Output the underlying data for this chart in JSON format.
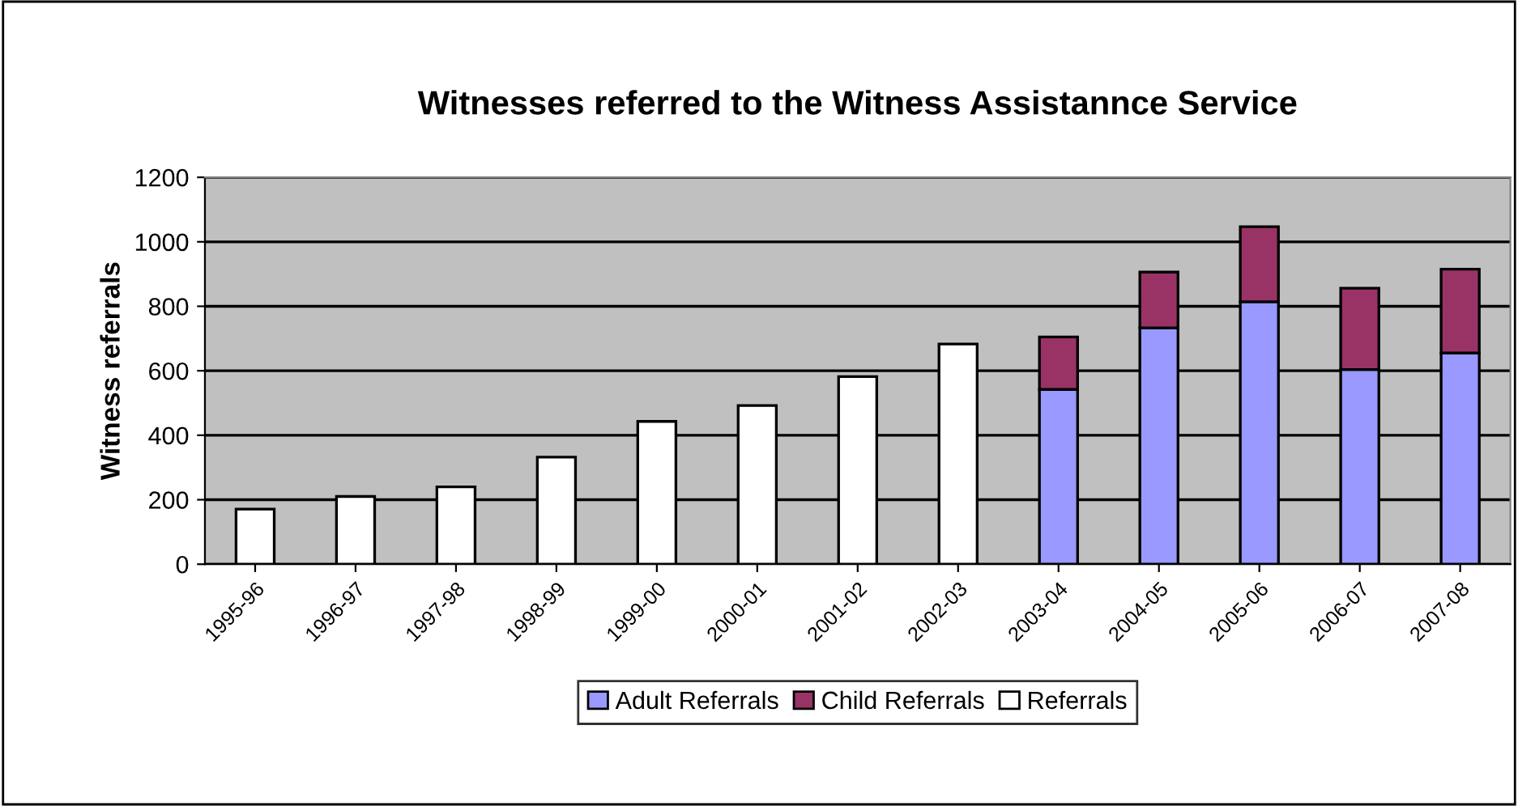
{
  "chart_data": {
    "type": "bar",
    "title": "Witnesses referred to the Witness Assistannce Service",
    "ylabel": "Witness referrals",
    "categories": [
      "1995-96",
      "1996-97",
      "1997-98",
      "1998-99",
      "1999-00",
      "2000-01",
      "2001-02",
      "2002-03",
      "2003-04",
      "2004-05",
      "2005-06",
      "2006-07",
      "2007-08"
    ],
    "stacked": true,
    "series": [
      {
        "name": "Adult Referrals",
        "color": "#9999ff",
        "values": [
          null,
          null,
          null,
          null,
          null,
          null,
          null,
          null,
          542,
          733,
          814,
          604,
          655
        ]
      },
      {
        "name": "Child Referrals",
        "color": "#993366",
        "values": [
          null,
          null,
          null,
          null,
          null,
          null,
          null,
          null,
          163,
          173,
          233,
          252,
          260
        ]
      },
      {
        "name": "Referrals",
        "color": "#ffffff",
        "values": [
          171,
          210,
          240,
          332,
          443,
          492,
          582,
          683,
          null,
          null,
          null,
          null,
          null
        ]
      }
    ],
    "ylim": [
      0,
      1200
    ],
    "yticks": [
      0,
      200,
      400,
      600,
      800,
      1000,
      1200
    ],
    "grid": "y",
    "legend": "bottom"
  }
}
